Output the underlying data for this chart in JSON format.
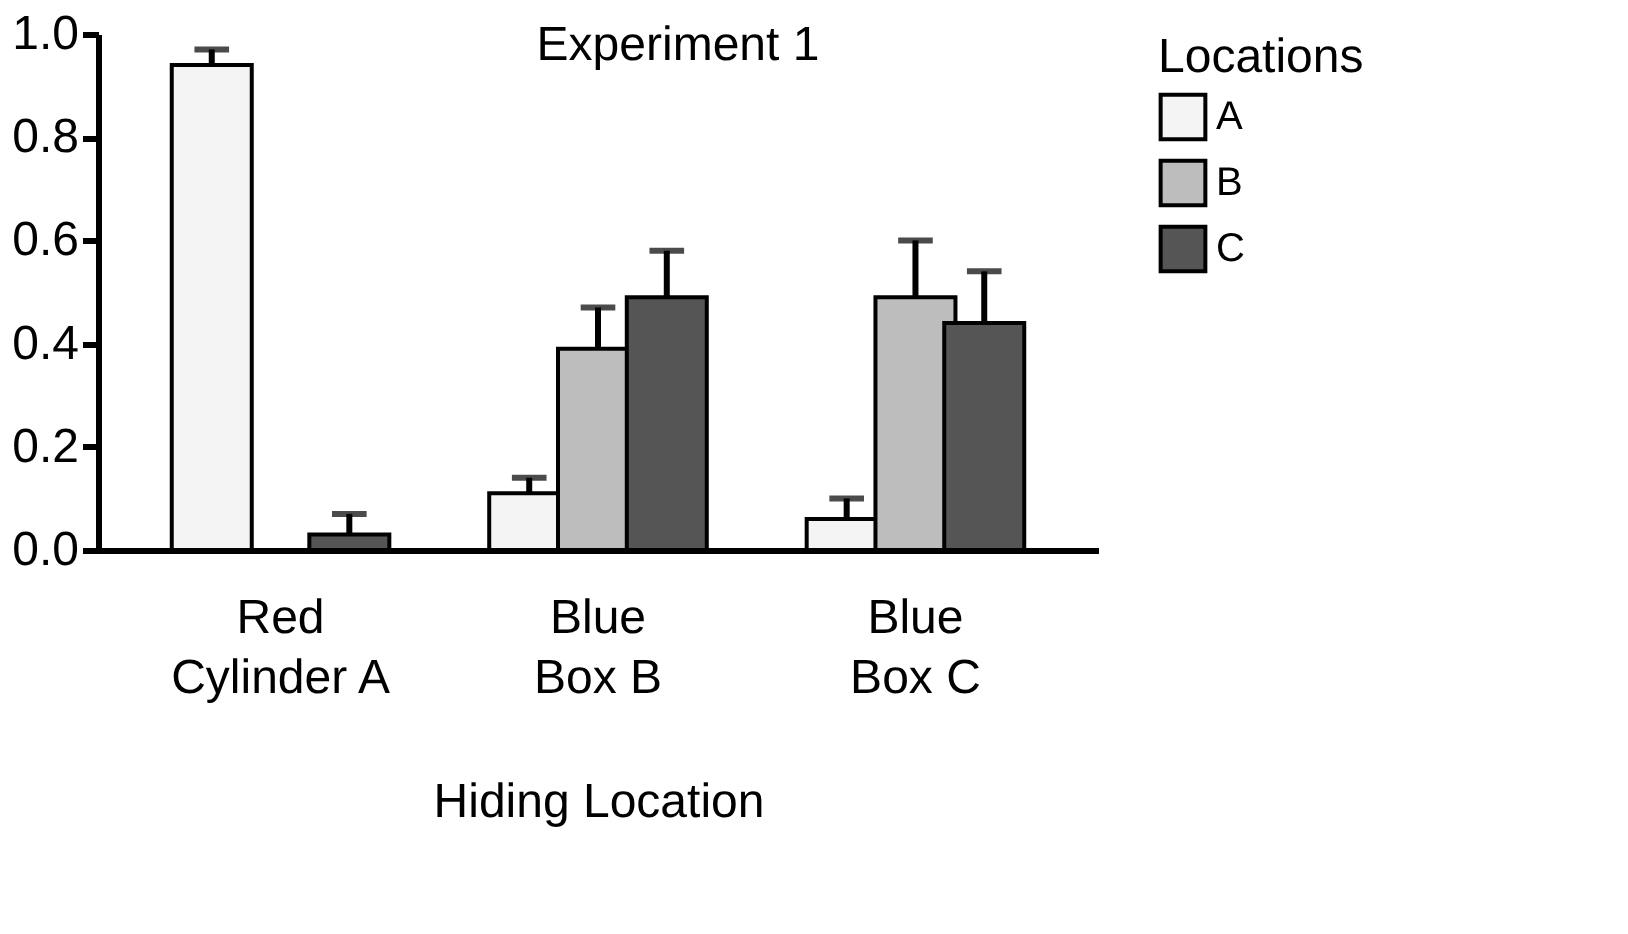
{
  "chart_data": {
    "type": "bar",
    "title": "Experiment 1",
    "xlabel": "Hiding Location",
    "legend_title": "Locations",
    "categories": [
      "Red\nCylinder A",
      "Blue\nBox B",
      "Blue\nBox C"
    ],
    "series": [
      {
        "name": "A",
        "color": "#f4f4f4",
        "values": [
          0.94,
          0.11,
          0.06
        ],
        "errors": [
          [
            0.94,
            0.97
          ],
          [
            0.11,
            0.14
          ],
          [
            0.06,
            0.1
          ]
        ]
      },
      {
        "name": "B",
        "color": "#bdbdbd",
        "values": [
          null,
          0.39,
          0.49
        ],
        "errors": [
          null,
          [
            0.39,
            0.47
          ],
          [
            0.49,
            0.6
          ]
        ]
      },
      {
        "name": "C",
        "color": "#555555",
        "values": [
          0.03,
          0.49,
          0.44
        ],
        "errors": [
          [
            0.03,
            0.07
          ],
          [
            0.49,
            0.58
          ],
          [
            0.44,
            0.54
          ]
        ]
      }
    ],
    "ylim": [
      0,
      1
    ],
    "yticks": [
      {
        "value": 0,
        "label": "0.0"
      },
      0.2,
      0.4,
      0.6,
      0.8,
      {
        "value": 1,
        "label": "1.0"
      }
    ],
    "grid": false,
    "legend": "top right"
  }
}
